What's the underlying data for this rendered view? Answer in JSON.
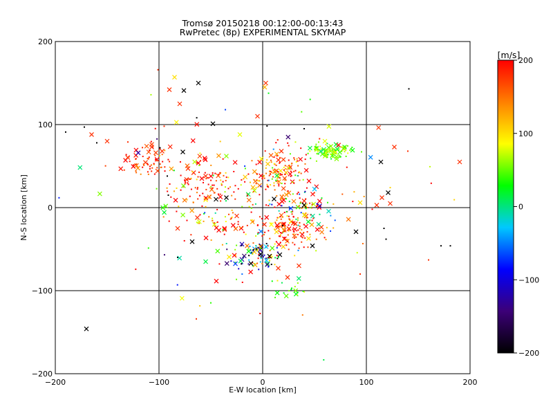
{
  "chart_data": {
    "type": "scatter",
    "title": "Tromsø 20150218 00:12:00-00:13:43",
    "subtitle": "RwPretec (8p) EXPERIMENTAL SKYMAP",
    "xlabel": "E-W location [km]",
    "ylabel": "N-S location [km]",
    "xlim": [
      -200,
      200
    ],
    "ylim": [
      -200,
      200
    ],
    "xticks": [
      -200,
      -100,
      0,
      100,
      200
    ],
    "yticks": [
      -200,
      -100,
      0,
      100,
      200
    ],
    "xtick_labels": [
      "−200",
      "−100",
      "0",
      "100",
      "200"
    ],
    "ytick_labels": [
      "−200",
      "−100",
      "0",
      "100",
      "200"
    ],
    "grid": true,
    "colorbar": {
      "label": "[m/s]",
      "min": -200,
      "max": 200,
      "ticks": [
        200,
        100,
        0,
        -100,
        -200
      ],
      "tick_labels": [
        "200",
        "100",
        "0",
        "−100",
        "−200"
      ],
      "stops": [
        "#000000",
        "#3c0078",
        "#0000ff",
        "#00c8ff",
        "#00ff00",
        "#ffff00",
        "#ff8000",
        "#ff0000"
      ]
    },
    "clusters": [
      {
        "cx": -110,
        "cy": 55,
        "sx": 12,
        "sy": 9,
        "n": 70,
        "v": 180,
        "vs": 25
      },
      {
        "cx": -55,
        "cy": 30,
        "sx": 18,
        "sy": 15,
        "n": 110,
        "v": 170,
        "vs": 60
      },
      {
        "cx": 15,
        "cy": 40,
        "sx": 16,
        "sy": 14,
        "n": 150,
        "v": 165,
        "vs": 60
      },
      {
        "cx": 65,
        "cy": 68,
        "sx": 10,
        "sy": 6,
        "n": 90,
        "v": 50,
        "vs": 25
      },
      {
        "cx": 25,
        "cy": -25,
        "sx": 15,
        "sy": 14,
        "n": 130,
        "v": 170,
        "vs": 60
      },
      {
        "cx": -5,
        "cy": -55,
        "sx": 12,
        "sy": 10,
        "n": 90,
        "v": -50,
        "vs": 140
      },
      {
        "cx": 35,
        "cy": 5,
        "sx": 20,
        "sy": 10,
        "n": 60,
        "v": 60,
        "vs": 140
      },
      {
        "cx": -40,
        "cy": -20,
        "sx": 20,
        "sy": 15,
        "n": 50,
        "v": 150,
        "vs": 80
      },
      {
        "cx": 30,
        "cy": -100,
        "sx": 10,
        "sy": 8,
        "n": 20,
        "v": 40,
        "vs": 20
      },
      {
        "cx": 0,
        "cy": 0,
        "sx": 75,
        "sy": 65,
        "n": 110,
        "v": 80,
        "vs": 150
      }
    ],
    "crosses": [
      [
        -170,
        -146,
        -200
      ],
      [
        -150,
        80,
        180
      ],
      [
        -165,
        88,
        180
      ],
      [
        -80,
        125,
        180
      ],
      [
        -90,
        142,
        180
      ],
      [
        -85,
        157,
        100
      ],
      [
        -62,
        150,
        -200
      ],
      [
        -76,
        141,
        -200
      ],
      [
        -48,
        101,
        -200
      ],
      [
        2,
        145,
        120
      ],
      [
        -5,
        110,
        180
      ],
      [
        3,
        150,
        180
      ],
      [
        -120,
        66,
        -120
      ],
      [
        -107,
        73,
        180
      ],
      [
        -77,
        67,
        -200
      ],
      [
        -97,
        68,
        180
      ],
      [
        -22,
        88,
        80
      ],
      [
        -35,
        62,
        60
      ],
      [
        8,
        63,
        160
      ],
      [
        18,
        68,
        180
      ],
      [
        60,
        80,
        80
      ],
      [
        79,
        73,
        40
      ],
      [
        56,
        68,
        0
      ],
      [
        114,
        55,
        -200
      ],
      [
        127,
        73,
        180
      ],
      [
        190,
        55,
        180
      ],
      [
        94,
        6,
        100
      ],
      [
        121,
        18,
        -200
      ],
      [
        110,
        3,
        180
      ],
      [
        123,
        5,
        180
      ],
      [
        115,
        12,
        180
      ],
      [
        90,
        -29,
        -200
      ],
      [
        -35,
        12,
        -200
      ],
      [
        -45,
        10,
        -200
      ],
      [
        40,
        3,
        -200
      ],
      [
        55,
        2,
        -120
      ],
      [
        44,
        -17,
        20
      ],
      [
        54,
        -20,
        0
      ],
      [
        -82,
        -25,
        180
      ],
      [
        -68,
        -41,
        -200
      ],
      [
        -15,
        -46,
        150
      ],
      [
        -20,
        -44,
        -120
      ],
      [
        35,
        -70,
        180
      ],
      [
        48,
        -46,
        -200
      ],
      [
        -2,
        -56,
        -200
      ],
      [
        15,
        -73,
        180
      ],
      [
        24,
        -84,
        180
      ],
      [
        -63,
        -12,
        180
      ],
      [
        -25,
        -10,
        180
      ],
      [
        -55,
        38,
        180
      ],
      [
        -72,
        47,
        180
      ]
    ],
    "dots": [
      [
        141,
        143,
        -200
      ],
      [
        172,
        -46,
        -200
      ],
      [
        181,
        -46,
        -200
      ],
      [
        160,
        -63,
        180
      ],
      [
        -190,
        91,
        -200
      ],
      [
        -172,
        97,
        -200
      ],
      [
        -160,
        78,
        -200
      ],
      [
        -95,
        98,
        180
      ],
      [
        -99,
        72,
        -200
      ],
      [
        -92,
        38,
        -200
      ],
      [
        -91,
        15,
        -200
      ],
      [
        -82,
        -60,
        -200
      ],
      [
        -64,
        -134,
        180
      ],
      [
        -101,
        166,
        180
      ],
      [
        119,
        -38,
        -200
      ],
      [
        140,
        68,
        180
      ],
      [
        -130,
        79,
        180
      ],
      [
        40,
        95,
        -200
      ],
      [
        94,
        -80,
        180
      ],
      [
        117,
        -25,
        -200
      ]
    ]
  }
}
